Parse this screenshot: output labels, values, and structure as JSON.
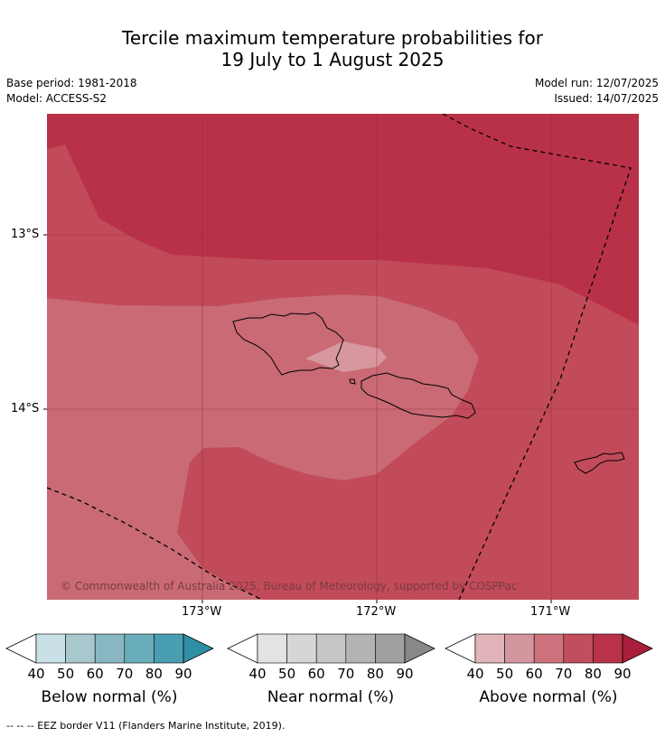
{
  "title_line1": "Tercile maximum temperature probabilities for",
  "title_line2": "19 July to 1 August 2025",
  "base_period": "Base period: 1981-2018",
  "model": "Model: ACCESS-S2",
  "model_run": "Model run: 12/07/2025",
  "issued": "Issued: 14/07/2025",
  "lat_labels": [
    "13°S",
    "14°S"
  ],
  "lon_labels": [
    "173°W",
    "172°W",
    "171°W"
  ],
  "copyright": "© Commonwealth of Australia 2025, Bureau of Meteorology, supported by COSPPac",
  "colorbars": [
    {
      "title": "Below normal (%)",
      "ticks": [
        "40",
        "50",
        "60",
        "70",
        "80",
        "90"
      ],
      "colors": [
        "#c9e1e6",
        "#a7c9ce",
        "#88b7c2",
        "#69adbb",
        "#4a9eb1",
        "#2e8fa5"
      ]
    },
    {
      "title": "Near normal (%)",
      "ticks": [
        "40",
        "50",
        "60",
        "70",
        "80",
        "90"
      ],
      "colors": [
        "#e3e3e3",
        "#d6d6d6",
        "#c6c6c6",
        "#b3b3b3",
        "#a0a0a0",
        "#888888"
      ]
    },
    {
      "title": "Above normal (%)",
      "ticks": [
        "40",
        "50",
        "60",
        "70",
        "80",
        "90"
      ],
      "colors": [
        "#e0b4b9",
        "#d4969e",
        "#ce737d",
        "#c24d5c",
        "#ba3249",
        "#a91e3c"
      ]
    }
  ],
  "footnote": "--  --  -- EEZ border V11 (Flanders Marine Institute, 2019).",
  "map_colors": {
    "band_90": "#b93149",
    "band_80": "#c14b58",
    "band_70": "#c96a74",
    "band_60": "#d8979e",
    "coast": "#000000",
    "eez": "#000000",
    "grid": "#8a2a38"
  }
}
